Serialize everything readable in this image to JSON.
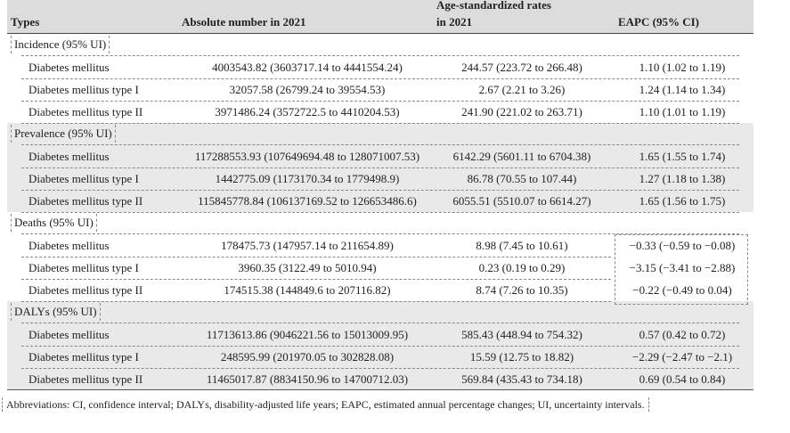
{
  "header": {
    "types": "Types",
    "absolute": "Absolute number in 2021",
    "asr_line1": "Age-standardized rates",
    "asr_line2": "in 2021",
    "eapc": "EAPC (95% CI)"
  },
  "groups": [
    {
      "label": "Incidence (95% UI)",
      "rows": [
        {
          "name": "Diabetes mellitus",
          "abs": "4003543.82 (3603717.14 to 4441554.24)",
          "asr": "244.57 (223.72 to 266.48)",
          "eapc": "1.10 (1.02 to 1.19)"
        },
        {
          "name": "Diabetes mellitus type I",
          "abs": "32057.58 (26799.24 to 39554.53)",
          "asr": "2.67 (2.21 to 3.26)",
          "eapc": "1.24 (1.14 to 1.34)"
        },
        {
          "name": "Diabetes mellitus type II",
          "abs": "3971486.24 (3572722.5 to 4410204.53)",
          "asr": "241.90 (221.02 to 263.71)",
          "eapc": "1.10 (1.01 to 1.19)"
        }
      ]
    },
    {
      "label": "Prevalence (95% UI)",
      "rows": [
        {
          "name": "Diabetes mellitus",
          "abs": "117288553.93 (107649694.48 to 128071007.53)",
          "asr": "6142.29 (5601.11 to 6704.38)",
          "eapc": "1.65 (1.55 to 1.74)"
        },
        {
          "name": "Diabetes mellitus type I",
          "abs": "1442775.09 (1173170.34 to 1779498.9)",
          "asr": "86.78 (70.55 to 107.44)",
          "eapc": "1.27 (1.18 to 1.38)"
        },
        {
          "name": "Diabetes mellitus type II",
          "abs": "115845778.84 (106137169.52 to 126653486.6)",
          "asr": "6055.51 (5510.07 to 6614.27)",
          "eapc": "1.65 (1.56 to 1.75)"
        }
      ]
    },
    {
      "label": "Deaths (95% UI)",
      "rows": [
        {
          "name": "Diabetes mellitus",
          "abs": "178475.73 (147957.14 to 211654.89)",
          "asr": "8.98 (7.45 to 10.61)",
          "eapc": "−0.33 (−0.59 to −0.08)"
        },
        {
          "name": "Diabetes mellitus type I",
          "abs": "3960.35 (3122.49 to 5010.94)",
          "asr": "0.23 (0.19 to 0.29)",
          "eapc": "−3.15 (−3.41 to −2.88)"
        },
        {
          "name": "Diabetes mellitus type II",
          "abs": "174515.38 (144849.6 to 207116.82)",
          "asr": "8.74 (7.26 to 10.35)",
          "eapc": "−0.22 (−0.49 to 0.04)"
        }
      ]
    },
    {
      "label": "DALYs (95% UI)",
      "rows": [
        {
          "name": "Diabetes mellitus",
          "abs": "11713613.86 (9046221.56 to 15013009.95)",
          "asr": "585.43 (448.94 to 754.32)",
          "eapc": "0.57 (0.42 to 0.72)"
        },
        {
          "name": "Diabetes mellitus type I",
          "abs": "248595.99 (201970.05 to 302828.08)",
          "asr": "15.59 (12.75 to 18.82)",
          "eapc": "−2.29 (−2.47 to −2.1)"
        },
        {
          "name": "Diabetes mellitus type II",
          "abs": "11465017.87 (8834150.96 to 14700712.03)",
          "asr": "569.84 (435.43 to 734.18)",
          "eapc": "0.69 (0.54 to 0.84)"
        }
      ]
    }
  ],
  "footnote": "Abbreviations: CI, confidence interval; DALYs, disability-adjusted life years; EAPC, estimated annual percentage changes; UI, uncertainty intervals."
}
